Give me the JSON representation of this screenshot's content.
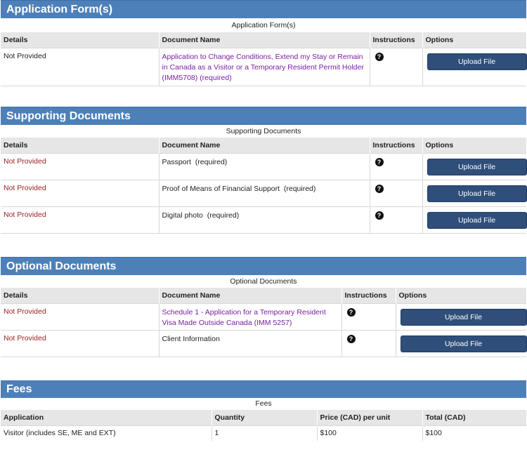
{
  "upload_label": "Upload File",
  "help_glyph": "?",
  "application_forms": {
    "title": "Application Form(s)",
    "caption": "Application Form(s)",
    "headers": [
      "Details",
      "Document Name",
      "Instructions",
      "Options"
    ],
    "rows": [
      {
        "details": "Not Provided",
        "name": "Application to Change Conditions, Extend my Stay or Remain in Canada as a Visitor or a Temporary Resident Permit Holder (IMM5708)",
        "suffix": "(required)"
      }
    ]
  },
  "supporting_documents": {
    "title": "Supporting Documents",
    "caption": "Supporting Documents",
    "headers": [
      "Details",
      "Document Name",
      "Instructions",
      "Options"
    ],
    "rows": [
      {
        "details": "Not Provided",
        "name": "Passport",
        "suffix": "(required)"
      },
      {
        "details": "Not Provided",
        "name": "Proof of Means of Financial Support",
        "suffix": "(required)"
      },
      {
        "details": "Not Provided",
        "name": "Digital photo",
        "suffix": "(required)"
      }
    ]
  },
  "optional_documents": {
    "title": "Optional Documents",
    "caption": "Optional Documents",
    "headers": [
      "Details",
      "Document Name",
      "Instructions",
      "Options"
    ],
    "rows": [
      {
        "details": "Not Provided",
        "name": "Schedule 1 - Application for a Temporary Resident Visa Made Outside Canada (IMM 5257)"
      },
      {
        "details": "Not Provided",
        "name": "Client Information"
      }
    ]
  },
  "fees": {
    "title": "Fees",
    "caption": "Fees",
    "headers": [
      "Application",
      "Quantity",
      "Price (CAD) per unit",
      "Total (CAD)"
    ],
    "rows": [
      {
        "application": "Visitor (includes SE, ME and EXT)",
        "quantity": "1",
        "price": "$100",
        "total": "$100"
      }
    ]
  },
  "colors": {
    "header_bar": "#4d80b8",
    "button": "#2f4f7a",
    "not_provided": "#9a1f1f",
    "link": "#7a1fa2",
    "table_header": "#e6e6e6"
  }
}
